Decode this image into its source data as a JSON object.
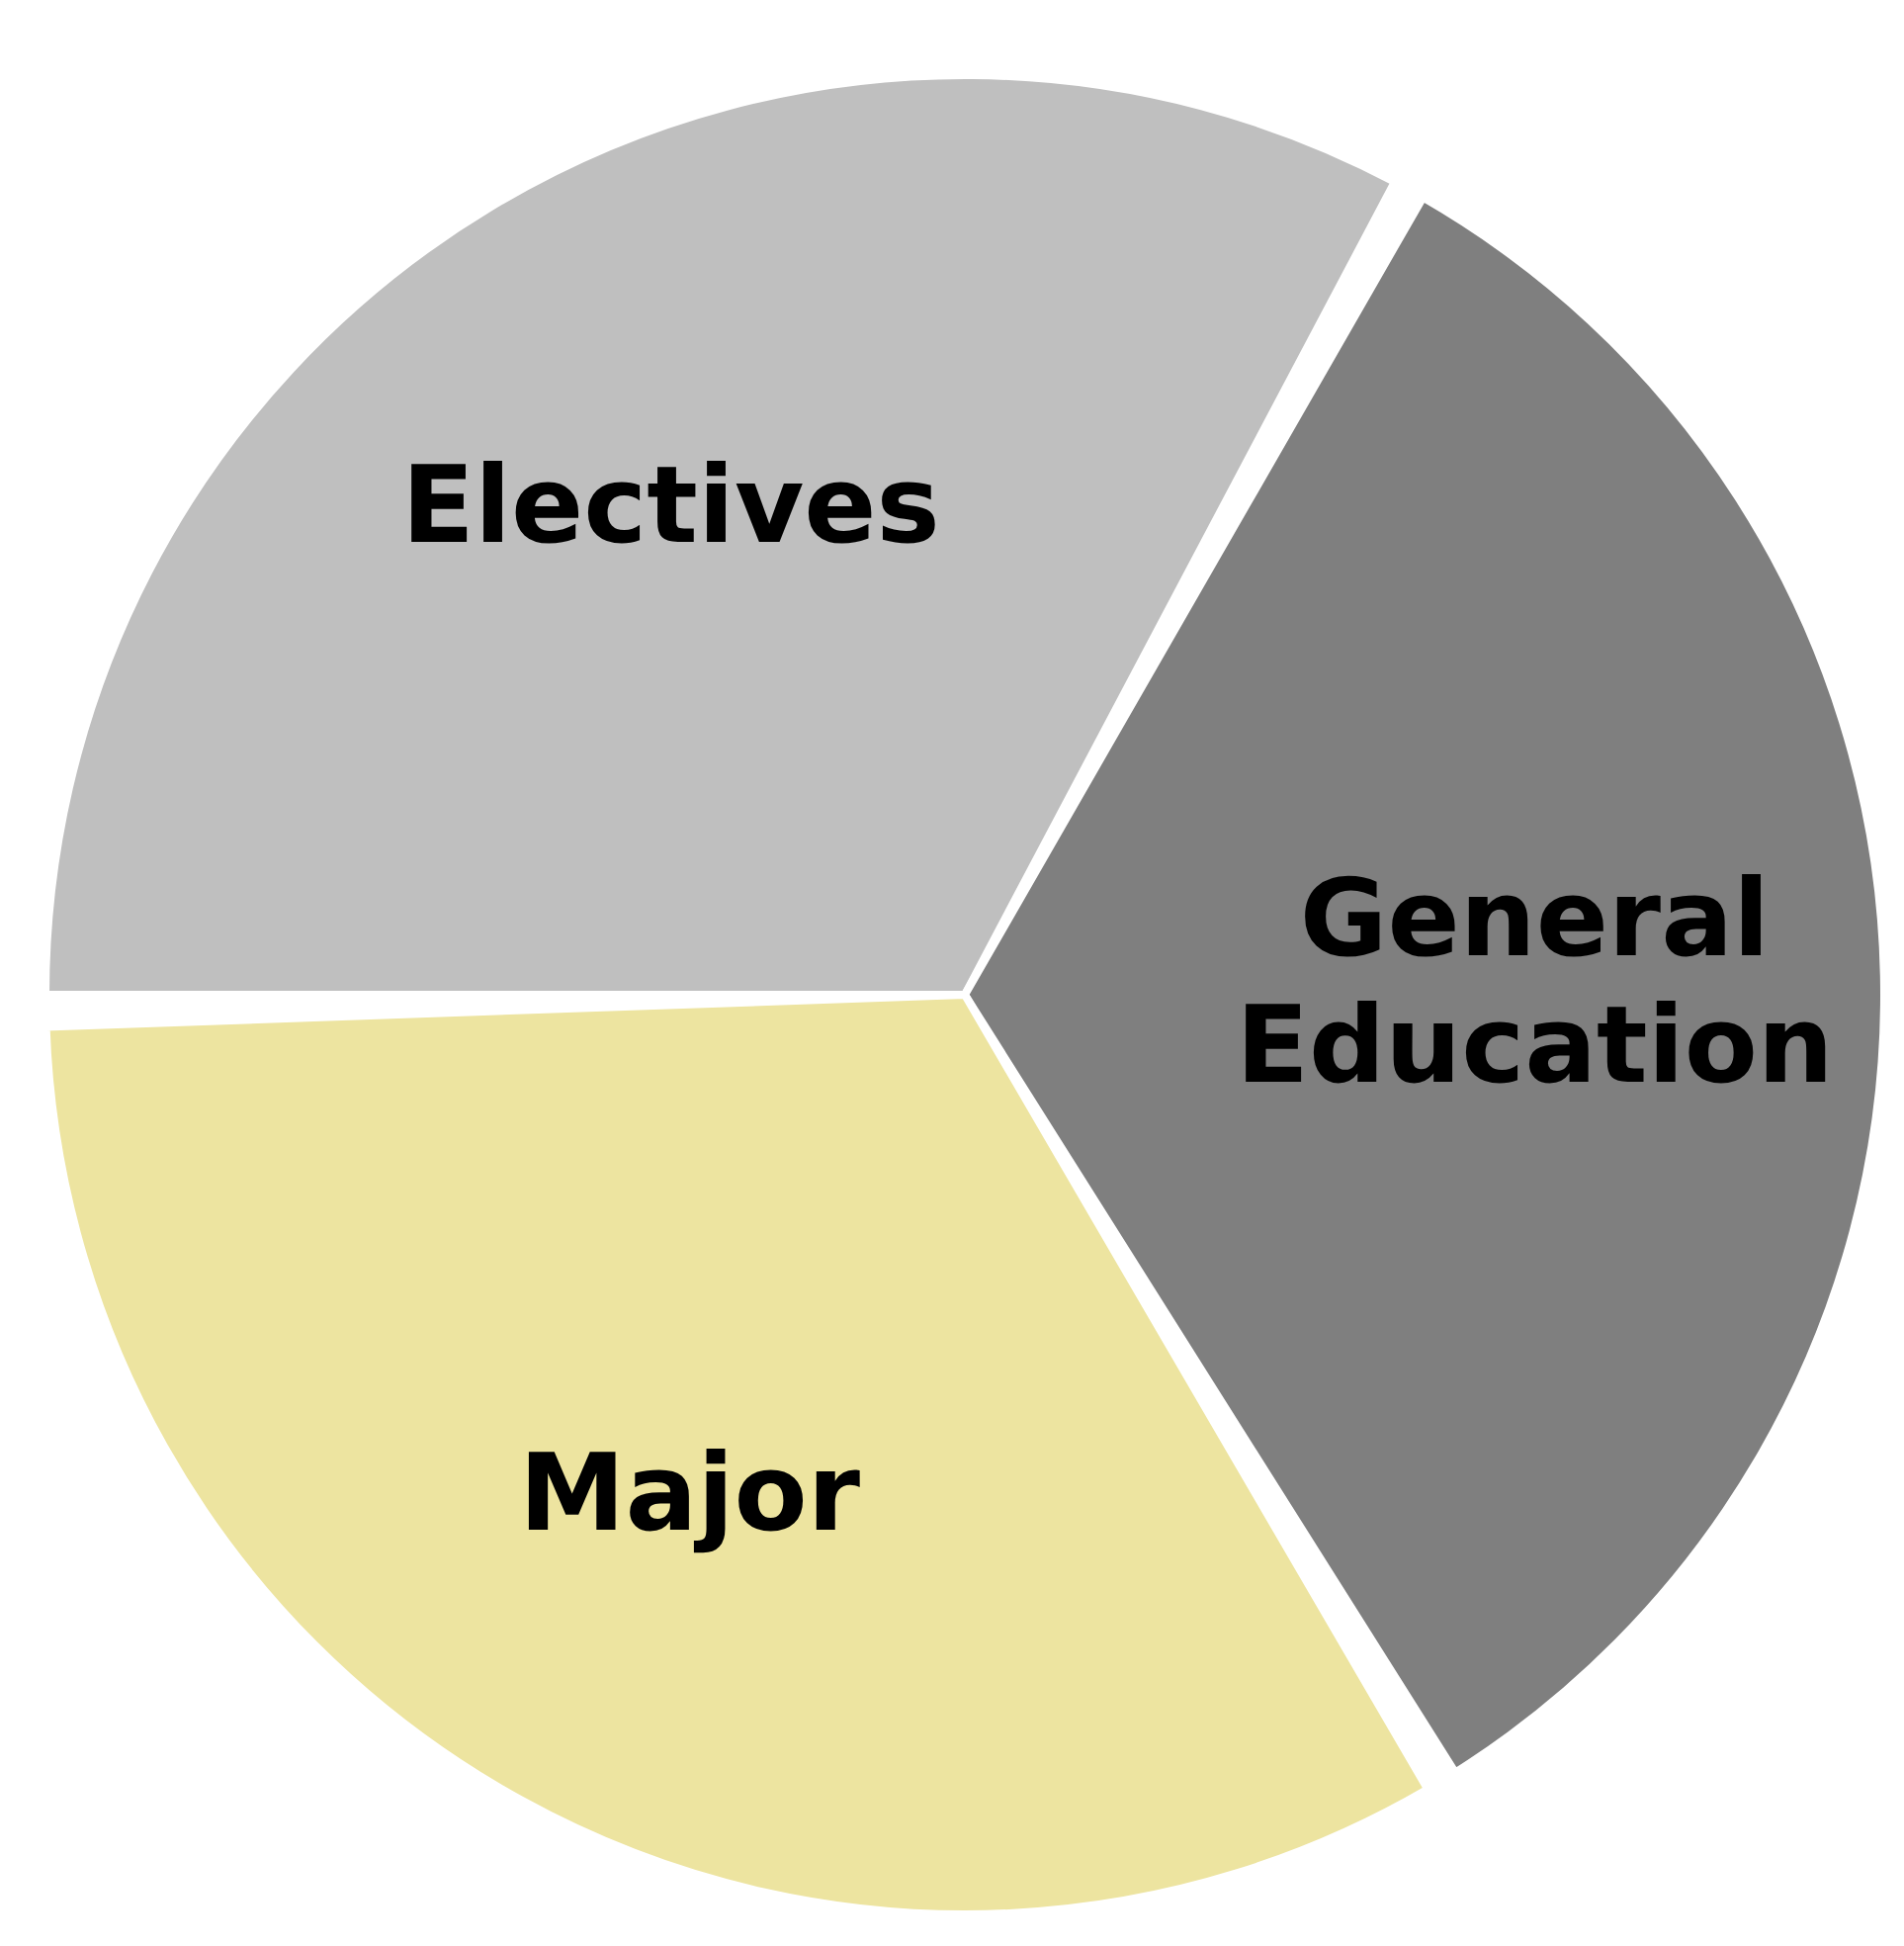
{
  "chart_data": {
    "type": "pie",
    "categories": [
      "Electives",
      "General Education",
      "Major"
    ],
    "values": [
      33.3,
      33.3,
      33.4
    ],
    "colors": [
      "#bfbfbf",
      "#7f7f7f",
      "#ede4a0"
    ],
    "legend": false
  }
}
